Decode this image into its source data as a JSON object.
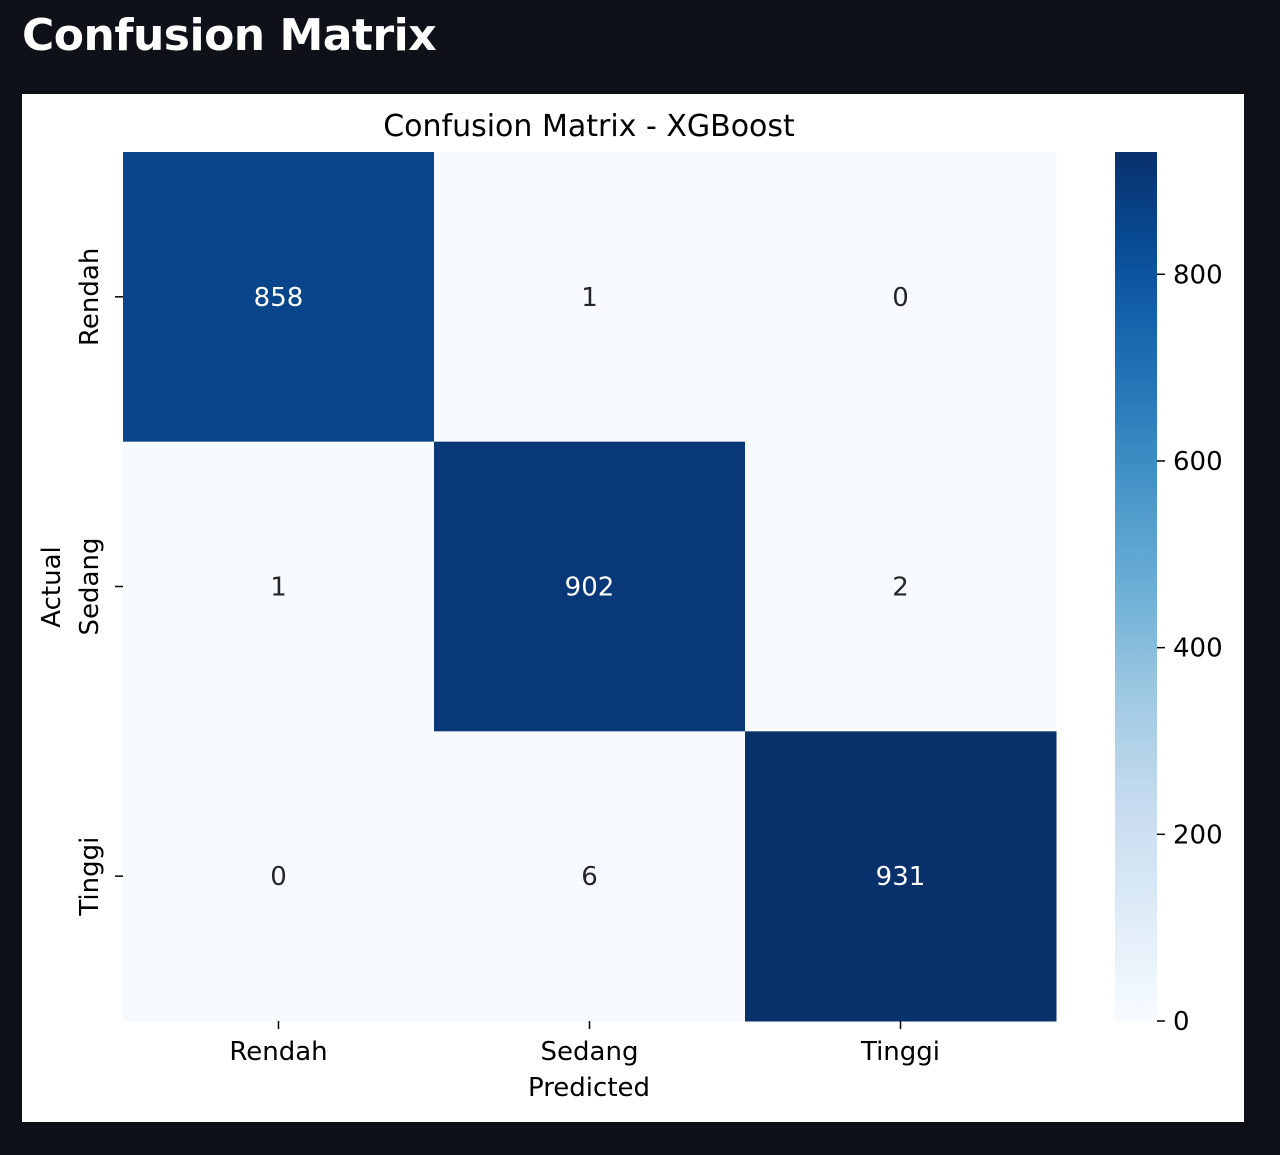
{
  "page": {
    "heading": "Confusion Matrix"
  },
  "chart_data": {
    "type": "heatmap",
    "title": "Confusion Matrix - XGBoost",
    "xlabel": "Predicted",
    "ylabel": "Actual",
    "x_categories": [
      "Rendah",
      "Sedang",
      "Tinggi"
    ],
    "y_categories": [
      "Rendah",
      "Sedang",
      "Tinggi"
    ],
    "values": [
      [
        858,
        1,
        0
      ],
      [
        1,
        902,
        2
      ],
      [
        0,
        6,
        931
      ]
    ],
    "colormap": "Blues",
    "colorbar": {
      "min": 0,
      "max": 931,
      "ticks": [
        0,
        200,
        400,
        600,
        800
      ]
    },
    "colors": {
      "low": "#f7fbff",
      "high": "#08306b",
      "page_background": "#0e1117"
    }
  }
}
